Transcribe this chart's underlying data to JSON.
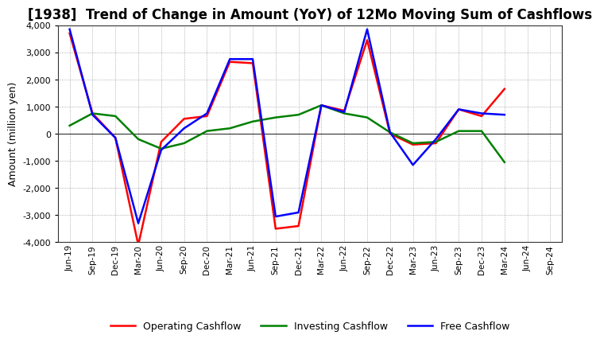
{
  "title": "[1938]  Trend of Change in Amount (YoY) of 12Mo Moving Sum of Cashflows",
  "ylabel": "Amount (million yen)",
  "x_labels": [
    "Jun-19",
    "Sep-19",
    "Dec-19",
    "Mar-20",
    "Jun-20",
    "Sep-20",
    "Dec-20",
    "Mar-21",
    "Jun-21",
    "Sep-21",
    "Dec-21",
    "Mar-22",
    "Jun-22",
    "Sep-22",
    "Dec-22",
    "Mar-23",
    "Jun-23",
    "Sep-23",
    "Dec-23",
    "Mar-24",
    "Jun-24",
    "Sep-24"
  ],
  "operating": [
    3700,
    750,
    -150,
    -4100,
    -300,
    550,
    650,
    2650,
    2600,
    -3500,
    -3400,
    1050,
    850,
    3450,
    0,
    -400,
    -350,
    900,
    650,
    1650,
    null,
    null
  ],
  "investing": [
    300,
    750,
    650,
    -200,
    -550,
    -350,
    100,
    200,
    450,
    600,
    700,
    1050,
    750,
    600,
    50,
    -350,
    -300,
    100,
    100,
    -1050,
    null,
    null
  ],
  "free": [
    3850,
    700,
    -150,
    -3300,
    -600,
    200,
    750,
    2750,
    2750,
    -3050,
    -2900,
    1050,
    800,
    3850,
    50,
    -1150,
    -200,
    900,
    750,
    700,
    null,
    null
  ],
  "operating_color": "#ff0000",
  "investing_color": "#008000",
  "free_color": "#0000ff",
  "ylim": [
    -4000,
    4000
  ],
  "yticks": [
    -4000,
    -3000,
    -2000,
    -1000,
    0,
    1000,
    2000,
    3000,
    4000
  ],
  "bg_color": "#ffffff",
  "grid_color": "#999999",
  "title_fontsize": 12,
  "legend_labels": [
    "Operating Cashflow",
    "Investing Cashflow",
    "Free Cashflow"
  ]
}
